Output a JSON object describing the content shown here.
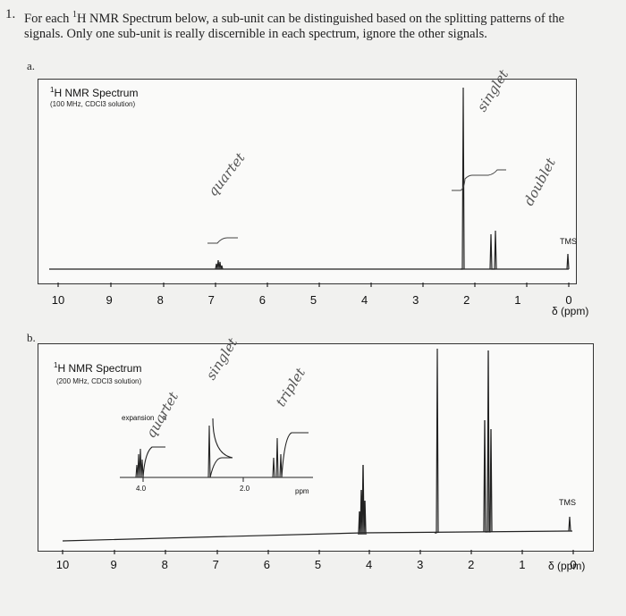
{
  "question": {
    "number": "1.",
    "text_before_sup": "For each ",
    "sup": "1",
    "text_after_sup": "H NMR Spectrum below, a sub-unit can be distinguished based on the splitting patterns of the signals. Only one sub-unit is really discernible in each spectrum, ignore the other signals."
  },
  "part_a": {
    "label": "a.",
    "title_sup": "1",
    "title": "H NMR Spectrum",
    "subtitle": "(100 MHz, CDCl3 solution)",
    "ticks": [
      "10",
      "9",
      "8",
      "7",
      "6",
      "5",
      "4",
      "3",
      "2",
      "1",
      "0"
    ],
    "unit": "δ (ppm)",
    "tms": "TMS",
    "handwritten": {
      "quartet": "quartet",
      "singlet": "singlet",
      "doublet": "doublet"
    },
    "chart_data": {
      "type": "line",
      "xlabel": "δ (ppm)",
      "xlim": [
        10,
        0
      ],
      "peaks": [
        {
          "ppm": 7.3,
          "multiplicity": "quartet"
        },
        {
          "ppm": 2.0,
          "multiplicity": "singlet"
        },
        {
          "ppm": 1.25,
          "multiplicity": "doublet"
        },
        {
          "ppm": 0.0,
          "label": "TMS"
        }
      ]
    }
  },
  "part_b": {
    "label": "b.",
    "title_sup": "1",
    "title": "H NMR Spectrum",
    "subtitle": "(200 MHz, CDCl3 solution)",
    "expansion": "expansion",
    "inset_ticks": [
      "4.0",
      "2.0",
      "ppm"
    ],
    "ticks": [
      "10",
      "9",
      "8",
      "7",
      "6",
      "5",
      "4",
      "3",
      "2",
      "1",
      "0"
    ],
    "unit": "δ (ppm)",
    "tms": "TMS",
    "handwritten": {
      "quartet": "quartet",
      "singlet": "singlet",
      "triplet": "triplet"
    },
    "chart_data": {
      "type": "line",
      "xlabel": "δ (ppm)",
      "xlim": [
        10,
        0
      ],
      "peaks": [
        {
          "ppm": 4.0,
          "multiplicity": "quartet"
        },
        {
          "ppm": 2.05,
          "multiplicity": "singlet"
        },
        {
          "ppm": 1.2,
          "multiplicity": "triplet"
        },
        {
          "ppm": 0.0,
          "label": "TMS"
        }
      ]
    }
  }
}
